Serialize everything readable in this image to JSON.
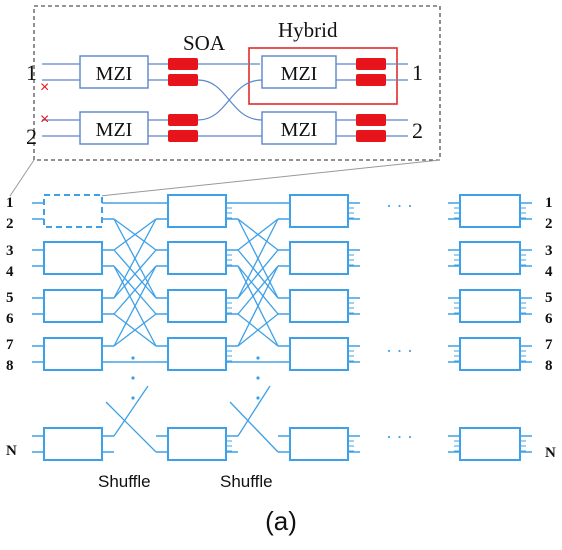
{
  "inset": {
    "soa_label": "SOA",
    "hybrid_label": "Hybrid",
    "mzi_label": "MZI",
    "input_ports": [
      "1",
      "2"
    ],
    "output_ports": [
      "1",
      "2"
    ],
    "blocked_marker": "×"
  },
  "network": {
    "left_ports": [
      "1",
      "2",
      "3",
      "4",
      "5",
      "6",
      "7",
      "8",
      "N"
    ],
    "right_ports": [
      "1",
      "2",
      "3",
      "4",
      "5",
      "6",
      "7",
      "8",
      "N"
    ],
    "shuffle_labels": [
      "Shuffle",
      "Shuffle"
    ],
    "ellipsis": "· · ·",
    "vertical_ellipsis": "·"
  },
  "colors": {
    "switch_blue": "#3ea0e6",
    "inset_blue": "#5b86c9",
    "soa_red": "#e8141b",
    "hybrid_box": "#e32b2b"
  },
  "caption": "(a)"
}
